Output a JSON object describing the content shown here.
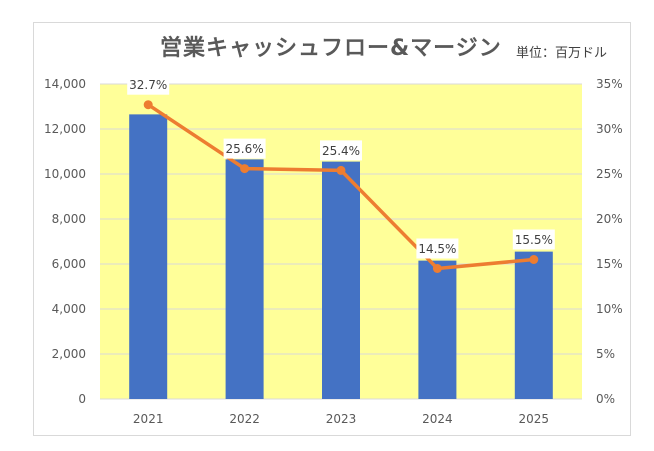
{
  "chart_data": {
    "type": "bar",
    "title": "営業キャッシュフロー&マージン",
    "unit": "単位：百万ドル",
    "categories": [
      "2021",
      "2022",
      "2023",
      "2024",
      "2025"
    ],
    "series": [
      {
        "values": [
          12650,
          10650,
          10550,
          6150,
          6550
        ],
        "axis": "left",
        "type": "bar"
      },
      {
        "values": [
          32.7,
          25.6,
          25.4,
          14.5,
          15.5
        ],
        "axis": "right",
        "type": "line"
      }
    ],
    "data_labels": [
      "32.7%",
      "25.6%",
      "25.4%",
      "14.5%",
      "15.5%"
    ],
    "y_left": {
      "lim": [
        0,
        14000
      ],
      "ticks": [
        "0",
        "2,000",
        "4,000",
        "6,000",
        "8,000",
        "10,000",
        "12,000",
        "14,000"
      ]
    },
    "y_right": {
      "lim": [
        0,
        35
      ],
      "ticks": [
        "0%",
        "5%",
        "10%",
        "15%",
        "20%",
        "25%",
        "30%",
        "35%"
      ]
    },
    "grid": true,
    "colors": {
      "plot_bg": "#ffff99",
      "bar": "#4472c4",
      "line": "#ed7d31",
      "grid": "#d9d9d9"
    }
  }
}
